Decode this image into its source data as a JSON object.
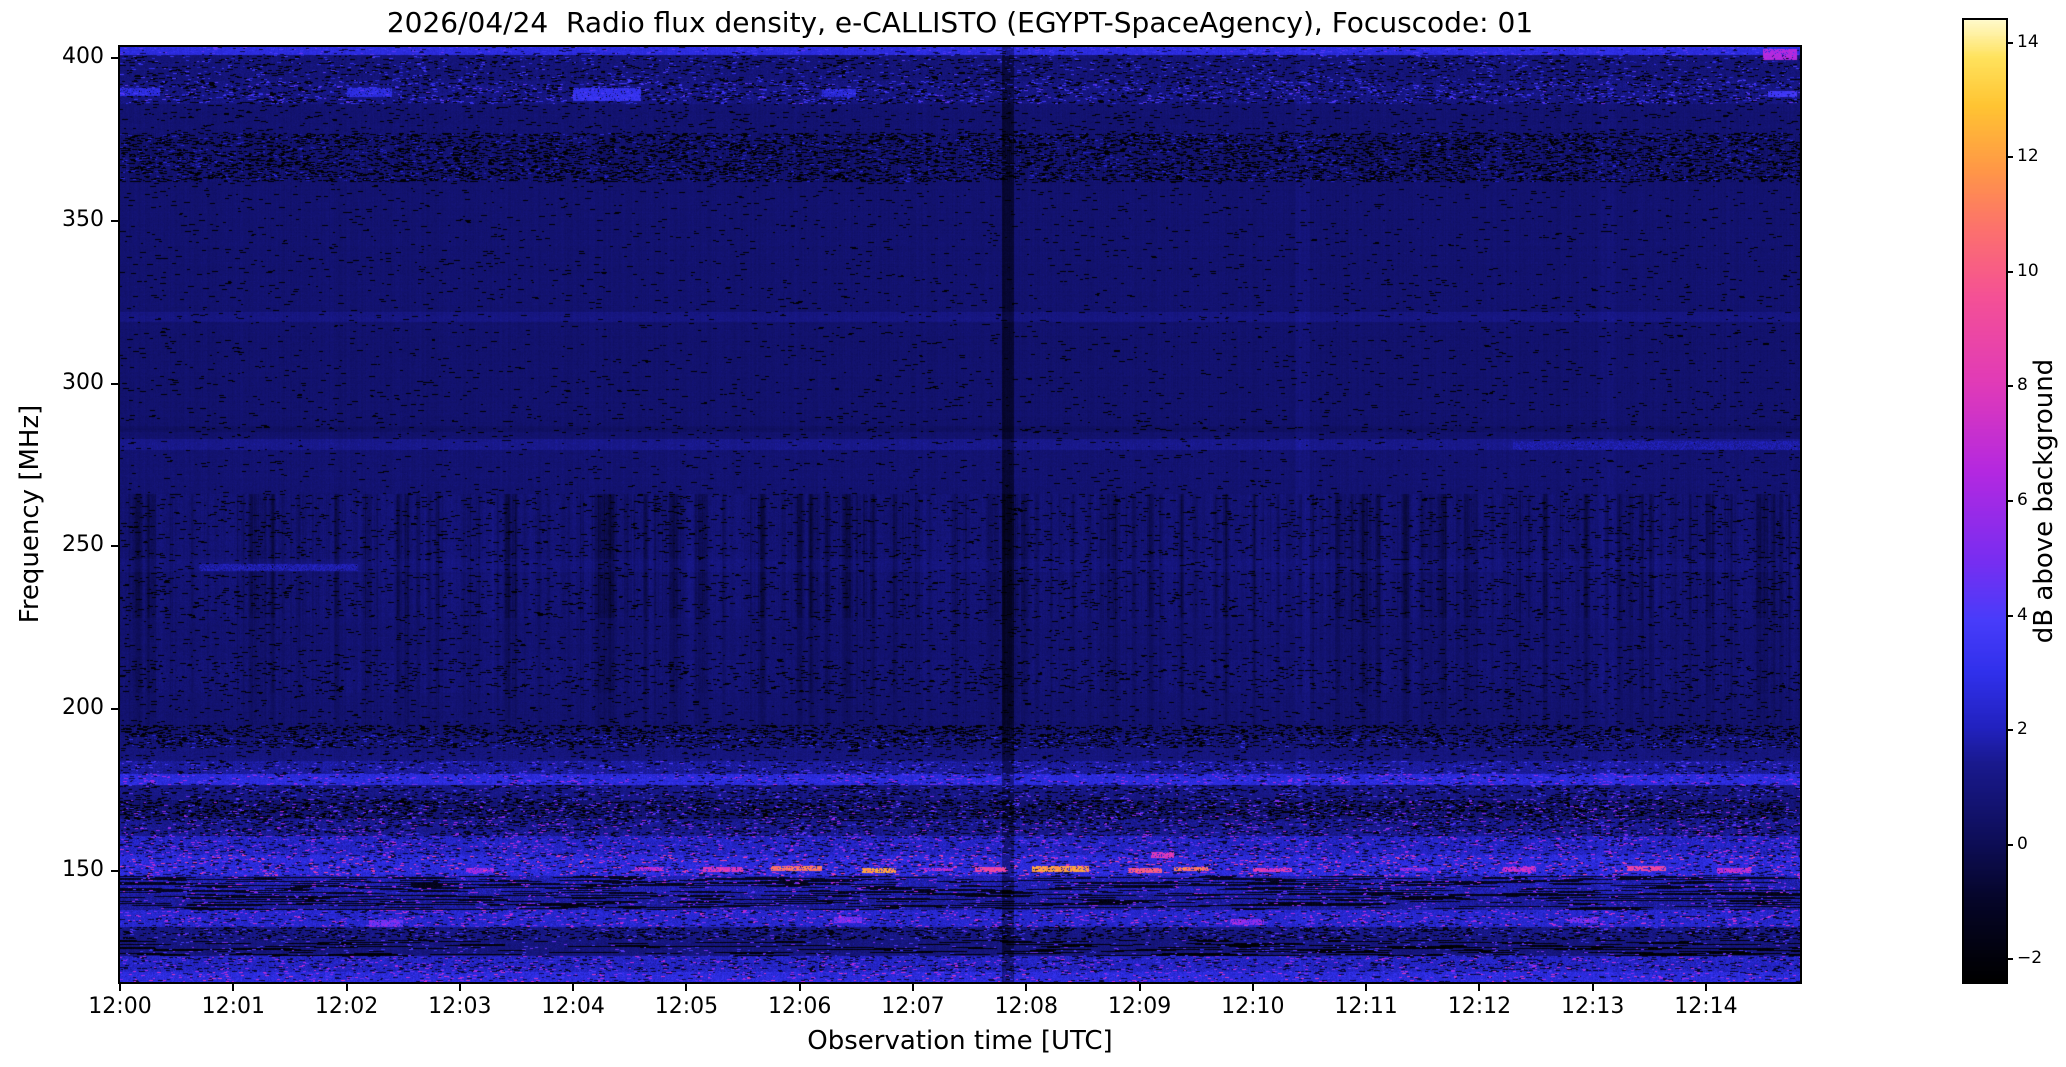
{
  "title": "2026/04/24  Radio flux density, e-CALLISTO (EGYPT-SpaceAgency), Focuscode: 01",
  "axes": {
    "x_label": "Observation time [UTC]",
    "y_label": "Frequency [MHz]",
    "x_ticks": [
      "12:00",
      "12:01",
      "12:02",
      "12:03",
      "12:04",
      "12:05",
      "12:06",
      "12:07",
      "12:08",
      "12:09",
      "12:10",
      "12:11",
      "12:12",
      "12:13",
      "12:14"
    ],
    "y_ticks": [
      400,
      350,
      300,
      250,
      200,
      150
    ]
  },
  "colorbar": {
    "label": "dB above background",
    "ticks": [
      14,
      12,
      10,
      8,
      6,
      4,
      2,
      0,
      -2
    ],
    "vmin": -2.4,
    "vmax": 14.4
  },
  "chart_data": {
    "type": "heatmap",
    "title": "2026/04/24  Radio flux density, e-CALLISTO (EGYPT-SpaceAgency), Focuscode: 01",
    "date": "2026/04/24",
    "instrument": "e-CALLISTO",
    "station": "EGYPT-SpaceAgency",
    "focuscode": "01",
    "xlabel": "Observation time [UTC]",
    "ylabel": "Frequency [MHz]",
    "value_units": "dB above background",
    "x_range_utc": [
      "12:00:00",
      "12:14:50"
    ],
    "x_span_minutes": 14.83,
    "y_range_mhz": [
      116,
      403.5
    ],
    "value_range": [
      -2.4,
      14.4
    ],
    "legend_position": "right-colorbar",
    "grid": false,
    "colormap_stops": [
      [
        0.0,
        0,
        0,
        0
      ],
      [
        0.083,
        5,
        5,
        40
      ],
      [
        0.143,
        13,
        13,
        86
      ],
      [
        0.226,
        25,
        25,
        142
      ],
      [
        0.262,
        33,
        33,
        190
      ],
      [
        0.32,
        48,
        48,
        235
      ],
      [
        0.375,
        72,
        60,
        250
      ],
      [
        0.44,
        122,
        45,
        240
      ],
      [
        0.53,
        180,
        40,
        224
      ],
      [
        0.62,
        224,
        58,
        184
      ],
      [
        0.71,
        244,
        80,
        150
      ],
      [
        0.78,
        252,
        112,
        110
      ],
      [
        0.845,
        255,
        152,
        70
      ],
      [
        0.91,
        255,
        196,
        50
      ],
      [
        0.96,
        255,
        226,
        92
      ],
      [
        1.0,
        255,
        250,
        205
      ]
    ],
    "features": [
      "Quasi-continuous dark blue background (~0-1 dB) from 190-400 MHz",
      "Bright blue edge row at ~402 MHz with magenta patch at far right end",
      "Speckled interference band near 386-393 MHz",
      "Fine textured noise band near 362-377 MHz",
      "Faint enhanced horizontal line near 320 MHz",
      "Enhanced line near 281 MHz, stronger after 12:12",
      "Vertical dark striping between ~228-266 MHz",
      "Short bright blue streak near 243 MHz around 12:01-12:02",
      "Dark dashed narrow band near 188-195 MHz",
      "Bright blue band near 176-184 MHz",
      "Dark speckled colorful band 161-176 MHz",
      "Strong RFI band 148-161 MHz with magenta/orange/yellow bursts, strongest 12:05-12:10 near 150 MHz",
      "Blocky black dropouts alternating with blue 138-148 MHz",
      "Blue band with magenta specks 133-138 MHz",
      "Noisy mixed blue/black band from 133 MHz down to plot bottom (~116 MHz)",
      "Dark vertical line across all frequencies near 12:07:50"
    ],
    "render": {
      "seed": 1337,
      "bands": [
        {
          "f0": 401,
          "f1": 403.5,
          "base": 2.7,
          "noise": 0.6,
          "pDark": 0.03,
          "pBright": 0.1,
          "bLo": 3,
          "bHi": 4.5
        },
        {
          "f0": 393,
          "f1": 401,
          "base": 0.9,
          "noise": 0.6,
          "pDark": 0.1,
          "pBright": 0.06,
          "bLo": 2,
          "bHi": 4
        },
        {
          "f0": 386,
          "f1": 393,
          "base": 1.1,
          "noise": 0.8,
          "pDark": 0.14,
          "pBright": 0.1,
          "bLo": 2.5,
          "bHi": 4.5
        },
        {
          "f0": 377,
          "f1": 386,
          "base": 0.7,
          "noise": 0.4,
          "pDark": 0.04
        },
        {
          "f0": 362,
          "f1": 377,
          "base": 0.8,
          "noise": 0.55,
          "pDark": 0.28,
          "pBright": 0.05,
          "bLo": 1.6,
          "bHi": 2.6,
          "fine": true,
          "stripe": 0.3
        },
        {
          "f0": 322,
          "f1": 362,
          "base": 0.65,
          "noise": 0.3,
          "pDark": 0.02
        },
        {
          "f0": 319,
          "f1": 322,
          "base": 1.1,
          "noise": 0.35,
          "pDark": 0.02
        },
        {
          "f0": 287,
          "f1": 319,
          "base": 0.6,
          "noise": 0.3,
          "pDark": 0.02
        },
        {
          "f0": 285,
          "f1": 287,
          "base": 0.35,
          "noise": 0.3,
          "pDark": 0.04
        },
        {
          "f0": 283,
          "f1": 285,
          "base": 0.6,
          "noise": 0.3,
          "pDark": 0.02
        },
        {
          "f0": 279.5,
          "f1": 283,
          "base": 1.3,
          "noise": 0.4,
          "pDark": 0.02
        },
        {
          "f0": 266,
          "f1": 279.5,
          "base": 0.7,
          "noise": 0.35,
          "pDark": 0.02
        },
        {
          "f0": 246,
          "f1": 266,
          "base": 0.7,
          "noise": 0.45,
          "pDark": 0.05,
          "stripe": 1.0
        },
        {
          "f0": 242,
          "f1": 246,
          "base": 0.9,
          "noise": 0.45,
          "pDark": 0.04,
          "stripe": 0.8
        },
        {
          "f0": 228,
          "f1": 242,
          "base": 0.7,
          "noise": 0.45,
          "pDark": 0.05,
          "stripe": 1.0
        },
        {
          "f0": 215,
          "f1": 228,
          "base": 0.65,
          "noise": 0.4,
          "pDark": 0.03,
          "stripe": 0.5
        },
        {
          "f0": 205,
          "f1": 215,
          "base": 0.75,
          "noise": 0.5,
          "pDark": 0.07,
          "stripe": 0.7
        },
        {
          "f0": 195,
          "f1": 205,
          "base": 0.65,
          "noise": 0.4,
          "pDark": 0.03,
          "stripe": 0.35
        },
        {
          "f0": 192,
          "f1": 195,
          "base": 0.8,
          "noise": 0.6,
          "pDark": 0.3,
          "fine": true
        },
        {
          "f0": 188,
          "f1": 192,
          "base": 1.0,
          "noise": 0.7,
          "pDark": 0.25,
          "pBright": 0.06,
          "bLo": 2,
          "bHi": 3.5,
          "fine": true
        },
        {
          "f0": 184,
          "f1": 188,
          "base": 1.0,
          "noise": 0.55,
          "pDark": 0.06
        },
        {
          "f0": 180,
          "f1": 184,
          "base": 1.6,
          "noise": 0.8,
          "pDark": 0.08,
          "pBright": 0.07,
          "bLo": 3,
          "bHi": 4.5
        },
        {
          "f0": 176.5,
          "f1": 180,
          "base": 2.7,
          "noise": 0.9,
          "pDark": 0.06,
          "pBright": 0.1,
          "bLo": 4,
          "bHi": 6.5
        },
        {
          "f0": 172,
          "f1": 176.5,
          "base": 1.2,
          "noise": 0.7,
          "pDark": 0.16,
          "pBright": 0.06,
          "bLo": 3,
          "bHi": 5
        },
        {
          "f0": 166,
          "f1": 172,
          "base": 0.9,
          "noise": 0.8,
          "pDark": 0.3,
          "pBright": 0.08,
          "bLo": 3,
          "bHi": 6,
          "fine": true
        },
        {
          "f0": 161,
          "f1": 166,
          "base": 1.4,
          "noise": 0.9,
          "pDark": 0.18,
          "pBright": 0.08,
          "bLo": 3.5,
          "bHi": 6.5
        },
        {
          "f0": 155,
          "f1": 161,
          "base": 2.2,
          "noise": 1.1,
          "pDark": 0.1,
          "pBright": 0.1,
          "bLo": 4,
          "bHi": 7
        },
        {
          "f0": 148.5,
          "f1": 155,
          "base": 2.7,
          "noise": 1.2,
          "pDark": 0.12,
          "pBright": 0.1,
          "bLo": 5,
          "bHi": 9
        },
        {
          "f0": 143,
          "f1": 148.5,
          "base": 1.9,
          "noise": 1.1,
          "pDark": 0.4,
          "pBright": 0.06,
          "bLo": 4,
          "bHi": 7,
          "blocky": true
        },
        {
          "f0": 138,
          "f1": 143,
          "base": 1.6,
          "noise": 1.0,
          "pDark": 0.35,
          "pBright": 0.05,
          "bLo": 4,
          "bHi": 6,
          "blocky": true
        },
        {
          "f0": 133,
          "f1": 138,
          "base": 2.4,
          "noise": 1.0,
          "pDark": 0.08,
          "pBright": 0.1,
          "bLo": 4.5,
          "bHi": 7.5
        },
        {
          "f0": 129,
          "f1": 133,
          "base": 1.2,
          "noise": 0.8,
          "pDark": 0.22,
          "pBright": 0.04,
          "bLo": 3,
          "bHi": 5
        },
        {
          "f0": 124,
          "f1": 129,
          "base": 1.0,
          "noise": 0.8,
          "pDark": 0.3,
          "pBright": 0.05,
          "bLo": 3,
          "bHi": 5,
          "blocky": true
        },
        {
          "f0": 119,
          "f1": 124,
          "base": 2.2,
          "noise": 1.1,
          "pDark": 0.12,
          "pBright": 0.08,
          "bLo": 4,
          "bHi": 7
        },
        {
          "f0": 116,
          "f1": 119,
          "base": 2.7,
          "noise": 1.1,
          "pDark": 0.06,
          "pBright": 0.1,
          "bLo": 4,
          "bHi": 8
        }
      ],
      "vlines": [
        {
          "t0": 7.79,
          "t1": 7.88,
          "dv": -1.4
        },
        {
          "t0": 10.38,
          "t1": 10.5,
          "dv": 0.25
        },
        {
          "t0": 13.05,
          "t1": 13.18,
          "dv": 0.2
        }
      ],
      "patches": [
        {
          "t0": 0.7,
          "t1": 2.1,
          "fLo": 242.3,
          "fHi": 244.6,
          "v": 2.3
        },
        {
          "t0": 12.3,
          "t1": 14.83,
          "fLo": 279.5,
          "fHi": 282.5,
          "v": 2.2
        },
        {
          "t0": 0.0,
          "t1": 0.35,
          "fLo": 388.5,
          "fHi": 391,
          "v": 3.2
        },
        {
          "t0": 2.0,
          "t1": 2.4,
          "fLo": 388,
          "fHi": 391,
          "v": 3.2
        },
        {
          "t0": 4.0,
          "t1": 4.6,
          "fLo": 387,
          "fHi": 391,
          "v": 3.6
        },
        {
          "t0": 6.2,
          "t1": 6.5,
          "fLo": 388,
          "fHi": 390.5,
          "v": 3.0
        },
        {
          "t0": 14.5,
          "t1": 14.8,
          "fLo": 399.5,
          "fHi": 403,
          "v": 7
        },
        {
          "t0": 14.55,
          "t1": 14.8,
          "fLo": 388,
          "fHi": 390,
          "v": 4
        }
      ],
      "bursts": [
        {
          "t0": 3.05,
          "t1": 3.3,
          "fLo": 149.5,
          "fHi": 151.2,
          "v": 7
        },
        {
          "t0": 4.55,
          "t1": 4.8,
          "fLo": 150,
          "fHi": 151.5,
          "v": 8
        },
        {
          "t0": 5.15,
          "t1": 5.5,
          "fLo": 149.8,
          "fHi": 151.3,
          "v": 9
        },
        {
          "t0": 5.75,
          "t1": 6.2,
          "fLo": 150,
          "fHi": 151.6,
          "v": 12
        },
        {
          "t0": 6.55,
          "t1": 6.85,
          "fLo": 149.5,
          "fHi": 151.1,
          "v": 13
        },
        {
          "t0": 7.1,
          "t1": 7.35,
          "fLo": 150,
          "fHi": 151.2,
          "v": 8
        },
        {
          "t0": 7.55,
          "t1": 7.82,
          "fLo": 149.8,
          "fHi": 151.4,
          "v": 10
        },
        {
          "t0": 8.05,
          "t1": 8.55,
          "fLo": 149.9,
          "fHi": 151.8,
          "v": 13
        },
        {
          "t0": 8.9,
          "t1": 9.2,
          "fLo": 149.5,
          "fHi": 151.1,
          "v": 11
        },
        {
          "t0": 9.3,
          "t1": 9.6,
          "fLo": 150,
          "fHi": 151.5,
          "v": 12
        },
        {
          "t0": 10.0,
          "t1": 10.35,
          "fLo": 149.8,
          "fHi": 151.2,
          "v": 9
        },
        {
          "t0": 11.3,
          "t1": 11.55,
          "fLo": 150,
          "fHi": 151.2,
          "v": 7
        },
        {
          "t0": 12.2,
          "t1": 12.5,
          "fLo": 149.8,
          "fHi": 151.3,
          "v": 8
        },
        {
          "t0": 13.3,
          "t1": 13.65,
          "fLo": 150,
          "fHi": 151.6,
          "v": 10
        },
        {
          "t0": 14.1,
          "t1": 14.4,
          "fLo": 149.5,
          "fHi": 151.1,
          "v": 8
        },
        {
          "t0": 9.1,
          "t1": 9.3,
          "fLo": 154,
          "fHi": 156,
          "v": 9
        },
        {
          "t0": 2.2,
          "t1": 2.5,
          "fLo": 133,
          "fHi": 135,
          "v": 6
        },
        {
          "t0": 6.3,
          "t1": 6.55,
          "fLo": 134,
          "fHi": 136,
          "v": 6
        },
        {
          "t0": 9.8,
          "t1": 10.1,
          "fLo": 133.5,
          "fHi": 135.5,
          "v": 6.5
        },
        {
          "t0": 12.8,
          "t1": 13.05,
          "fLo": 134,
          "fHi": 135.6,
          "v": 6
        }
      ]
    }
  }
}
